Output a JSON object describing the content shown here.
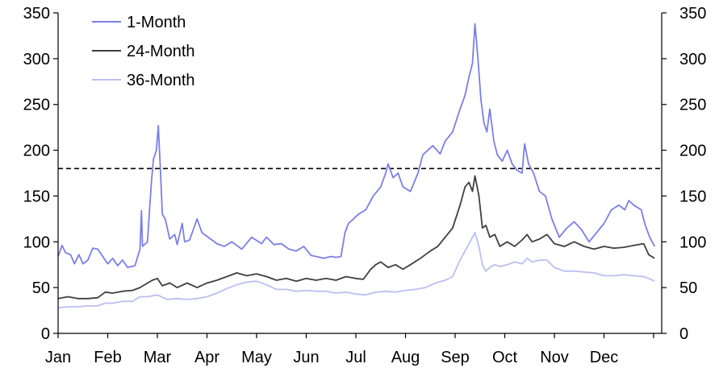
{
  "chart_data": {
    "type": "line",
    "title": "",
    "xlabel": "",
    "ylabel": "",
    "x_tick_labels": [
      "Jan",
      "Feb",
      "Mar",
      "Apr",
      "May",
      "Jun",
      "Jul",
      "Aug",
      "Sep",
      "Oct",
      "Nov",
      "Dec"
    ],
    "ylim": [
      0,
      350
    ],
    "y_ticks": [
      0,
      50,
      100,
      150,
      200,
      250,
      300,
      350
    ],
    "y_axis_left": true,
    "y_axis_right": true,
    "grid": false,
    "legend_position": "top-left",
    "reference_line": {
      "y": 180,
      "style": "dashed"
    },
    "x_note": "x values are month positions (1.0 = start of Jan, 12.0 = start of Dec)",
    "series": [
      {
        "name": "1-Month",
        "color": "#7b7fe6",
        "points": [
          [
            1.0,
            84
          ],
          [
            1.08,
            96
          ],
          [
            1.15,
            88
          ],
          [
            1.25,
            86
          ],
          [
            1.33,
            76
          ],
          [
            1.42,
            86
          ],
          [
            1.5,
            76
          ],
          [
            1.6,
            80
          ],
          [
            1.7,
            93
          ],
          [
            1.8,
            92
          ],
          [
            1.9,
            84
          ],
          [
            2.0,
            76
          ],
          [
            2.1,
            82
          ],
          [
            2.2,
            74
          ],
          [
            2.3,
            80
          ],
          [
            2.4,
            72
          ],
          [
            2.55,
            74
          ],
          [
            2.65,
            92
          ],
          [
            2.68,
            134
          ],
          [
            2.7,
            95
          ],
          [
            2.8,
            100
          ],
          [
            2.88,
            165
          ],
          [
            2.92,
            190
          ],
          [
            2.98,
            200
          ],
          [
            3.02,
            227
          ],
          [
            3.06,
            180
          ],
          [
            3.1,
            130
          ],
          [
            3.16,
            125
          ],
          [
            3.25,
            103
          ],
          [
            3.35,
            108
          ],
          [
            3.4,
            97
          ],
          [
            3.5,
            120
          ],
          [
            3.55,
            100
          ],
          [
            3.65,
            102
          ],
          [
            3.8,
            125
          ],
          [
            3.9,
            110
          ],
          [
            4.0,
            106
          ],
          [
            4.2,
            98
          ],
          [
            4.35,
            95
          ],
          [
            4.5,
            100
          ],
          [
            4.7,
            92
          ],
          [
            4.9,
            105
          ],
          [
            5.1,
            98
          ],
          [
            5.2,
            105
          ],
          [
            5.35,
            97
          ],
          [
            5.5,
            98
          ],
          [
            5.65,
            92
          ],
          [
            5.8,
            90
          ],
          [
            5.95,
            95
          ],
          [
            6.1,
            85
          ],
          [
            6.2,
            84
          ],
          [
            6.35,
            82
          ],
          [
            6.5,
            84
          ],
          [
            6.6,
            83
          ],
          [
            6.7,
            84
          ],
          [
            6.78,
            110
          ],
          [
            6.85,
            120
          ],
          [
            6.95,
            125
          ],
          [
            7.05,
            130
          ],
          [
            7.2,
            135
          ],
          [
            7.35,
            150
          ],
          [
            7.5,
            160
          ],
          [
            7.6,
            175
          ],
          [
            7.65,
            185
          ],
          [
            7.75,
            170
          ],
          [
            7.85,
            175
          ],
          [
            7.95,
            160
          ],
          [
            8.1,
            155
          ],
          [
            8.25,
            175
          ],
          [
            8.35,
            195
          ],
          [
            8.45,
            200
          ],
          [
            8.55,
            205
          ],
          [
            8.7,
            196
          ],
          [
            8.8,
            210
          ],
          [
            8.95,
            220
          ],
          [
            9.1,
            245
          ],
          [
            9.2,
            260
          ],
          [
            9.28,
            280
          ],
          [
            9.35,
            295
          ],
          [
            9.4,
            338
          ],
          [
            9.46,
            300
          ],
          [
            9.52,
            255
          ],
          [
            9.58,
            230
          ],
          [
            9.64,
            220
          ],
          [
            9.7,
            245
          ],
          [
            9.78,
            210
          ],
          [
            9.85,
            195
          ],
          [
            9.95,
            188
          ],
          [
            10.05,
            200
          ],
          [
            10.15,
            185
          ],
          [
            10.25,
            178
          ],
          [
            10.35,
            175
          ],
          [
            10.4,
            207
          ],
          [
            10.48,
            185
          ],
          [
            10.58,
            175
          ],
          [
            10.7,
            155
          ],
          [
            10.82,
            150
          ],
          [
            10.95,
            125
          ],
          [
            11.1,
            105
          ],
          [
            11.25,
            115
          ],
          [
            11.4,
            122
          ],
          [
            11.55,
            113
          ],
          [
            11.7,
            100
          ],
          [
            11.85,
            110
          ],
          [
            12.0,
            120
          ],
          [
            12.15,
            135
          ],
          [
            12.3,
            140
          ],
          [
            12.42,
            135
          ],
          [
            12.5,
            145
          ],
          [
            12.6,
            140
          ],
          [
            12.75,
            135
          ],
          [
            12.82,
            120
          ],
          [
            12.92,
            105
          ],
          [
            13.02,
            95
          ]
        ]
      },
      {
        "name": "24-Month",
        "color": "#3f3f3f",
        "points": [
          [
            1.0,
            38
          ],
          [
            1.2,
            40
          ],
          [
            1.4,
            38
          ],
          [
            1.6,
            38
          ],
          [
            1.8,
            39
          ],
          [
            1.95,
            45
          ],
          [
            2.1,
            44
          ],
          [
            2.3,
            46
          ],
          [
            2.5,
            47
          ],
          [
            2.65,
            50
          ],
          [
            2.8,
            55
          ],
          [
            2.9,
            58
          ],
          [
            3.0,
            60
          ],
          [
            3.1,
            52
          ],
          [
            3.25,
            55
          ],
          [
            3.4,
            50
          ],
          [
            3.6,
            55
          ],
          [
            3.8,
            50
          ],
          [
            4.0,
            55
          ],
          [
            4.2,
            58
          ],
          [
            4.4,
            62
          ],
          [
            4.6,
            66
          ],
          [
            4.8,
            63
          ],
          [
            5.0,
            65
          ],
          [
            5.2,
            62
          ],
          [
            5.4,
            58
          ],
          [
            5.6,
            60
          ],
          [
            5.8,
            57
          ],
          [
            6.0,
            60
          ],
          [
            6.2,
            58
          ],
          [
            6.4,
            60
          ],
          [
            6.6,
            58
          ],
          [
            6.8,
            62
          ],
          [
            7.0,
            60
          ],
          [
            7.15,
            59
          ],
          [
            7.3,
            70
          ],
          [
            7.4,
            75
          ],
          [
            7.5,
            78
          ],
          [
            7.65,
            72
          ],
          [
            7.8,
            75
          ],
          [
            7.95,
            70
          ],
          [
            8.1,
            75
          ],
          [
            8.3,
            82
          ],
          [
            8.5,
            90
          ],
          [
            8.65,
            95
          ],
          [
            8.8,
            105
          ],
          [
            8.95,
            115
          ],
          [
            9.1,
            140
          ],
          [
            9.2,
            160
          ],
          [
            9.28,
            165
          ],
          [
            9.35,
            155
          ],
          [
            9.4,
            172
          ],
          [
            9.48,
            150
          ],
          [
            9.55,
            115
          ],
          [
            9.62,
            118
          ],
          [
            9.7,
            105
          ],
          [
            9.8,
            108
          ],
          [
            9.9,
            95
          ],
          [
            10.05,
            100
          ],
          [
            10.2,
            95
          ],
          [
            10.35,
            102
          ],
          [
            10.45,
            108
          ],
          [
            10.55,
            100
          ],
          [
            10.7,
            103
          ],
          [
            10.85,
            108
          ],
          [
            11.0,
            98
          ],
          [
            11.2,
            95
          ],
          [
            11.4,
            100
          ],
          [
            11.6,
            95
          ],
          [
            11.8,
            92
          ],
          [
            12.0,
            95
          ],
          [
            12.2,
            93
          ],
          [
            12.4,
            94
          ],
          [
            12.6,
            96
          ],
          [
            12.8,
            98
          ],
          [
            12.9,
            86
          ],
          [
            13.02,
            82
          ]
        ]
      },
      {
        "name": "36-Month",
        "color": "#bbbff3",
        "points": [
          [
            1.0,
            28
          ],
          [
            1.2,
            29
          ],
          [
            1.4,
            29
          ],
          [
            1.6,
            30
          ],
          [
            1.8,
            30
          ],
          [
            1.95,
            33
          ],
          [
            2.1,
            33
          ],
          [
            2.3,
            35
          ],
          [
            2.5,
            35
          ],
          [
            2.65,
            40
          ],
          [
            2.8,
            40
          ],
          [
            3.0,
            42
          ],
          [
            3.2,
            37
          ],
          [
            3.4,
            38
          ],
          [
            3.6,
            37
          ],
          [
            3.8,
            38
          ],
          [
            4.0,
            40
          ],
          [
            4.2,
            44
          ],
          [
            4.4,
            49
          ],
          [
            4.6,
            53
          ],
          [
            4.8,
            56
          ],
          [
            5.0,
            57
          ],
          [
            5.2,
            53
          ],
          [
            5.4,
            48
          ],
          [
            5.6,
            48
          ],
          [
            5.8,
            46
          ],
          [
            6.0,
            47
          ],
          [
            6.2,
            46
          ],
          [
            6.4,
            46
          ],
          [
            6.6,
            44
          ],
          [
            6.8,
            45
          ],
          [
            7.0,
            43
          ],
          [
            7.2,
            42
          ],
          [
            7.4,
            45
          ],
          [
            7.6,
            46
          ],
          [
            7.8,
            45
          ],
          [
            8.0,
            47
          ],
          [
            8.2,
            48
          ],
          [
            8.4,
            50
          ],
          [
            8.6,
            55
          ],
          [
            8.8,
            58
          ],
          [
            8.95,
            62
          ],
          [
            9.1,
            80
          ],
          [
            9.2,
            90
          ],
          [
            9.3,
            100
          ],
          [
            9.4,
            110
          ],
          [
            9.48,
            95
          ],
          [
            9.55,
            75
          ],
          [
            9.62,
            68
          ],
          [
            9.7,
            72
          ],
          [
            9.8,
            75
          ],
          [
            9.9,
            73
          ],
          [
            10.05,
            75
          ],
          [
            10.2,
            78
          ],
          [
            10.35,
            76
          ],
          [
            10.45,
            82
          ],
          [
            10.55,
            78
          ],
          [
            10.7,
            80
          ],
          [
            10.85,
            80
          ],
          [
            11.0,
            72
          ],
          [
            11.2,
            68
          ],
          [
            11.4,
            68
          ],
          [
            11.6,
            67
          ],
          [
            11.8,
            66
          ],
          [
            12.0,
            63
          ],
          [
            12.2,
            63
          ],
          [
            12.4,
            64
          ],
          [
            12.6,
            63
          ],
          [
            12.8,
            62
          ],
          [
            12.9,
            60
          ],
          [
            13.02,
            57
          ]
        ]
      }
    ]
  }
}
